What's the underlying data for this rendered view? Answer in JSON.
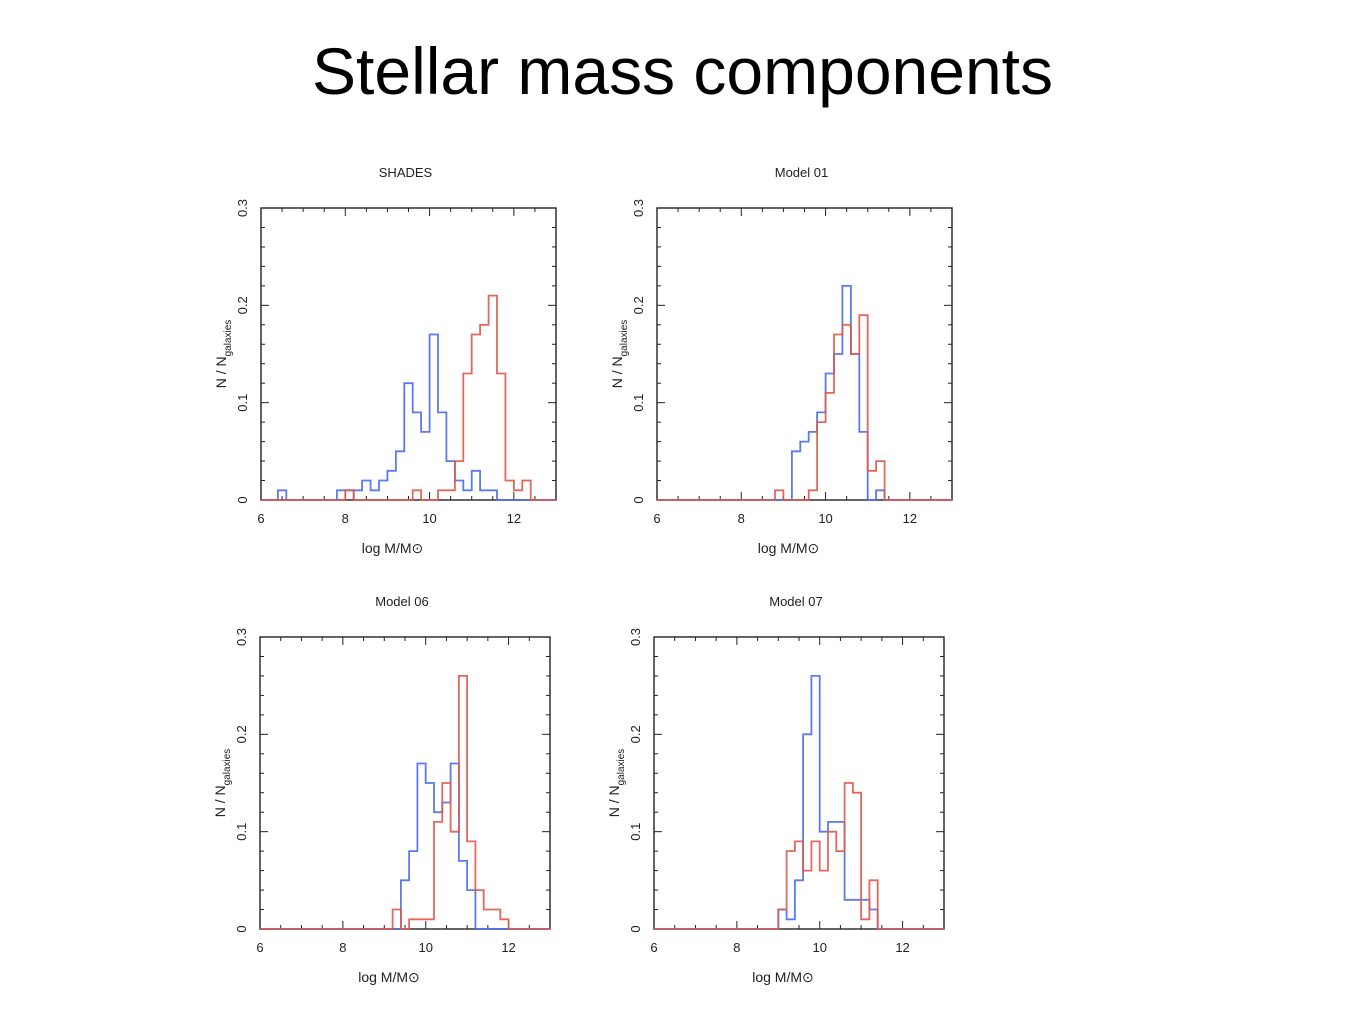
{
  "slide": {
    "title": "Stellar mass components"
  },
  "colors": {
    "blue": "#4a6cf0",
    "red": "#e0584a",
    "axis": "#222222"
  },
  "chart_data": [
    {
      "type": "histogram",
      "title": "SHADES",
      "xlabel": "log M/M⊙",
      "ylabel_main": "N / N",
      "ylabel_sub": "galaxies",
      "xlim": [
        6,
        13
      ],
      "ylim": [
        0,
        0.3
      ],
      "xticks": [
        6,
        8,
        10,
        12
      ],
      "xtick_labels": [
        "6",
        "8",
        "10",
        "12"
      ],
      "yticks": [
        0,
        0.1,
        0.2,
        0.3
      ],
      "ytick_labels": [
        "0",
        "0.1",
        "0.2",
        "0.3"
      ],
      "series": [
        {
          "color": "blue",
          "bins": [
            [
              6.0,
              0
            ],
            [
              6.4,
              0.01
            ],
            [
              6.6,
              0
            ],
            [
              7.8,
              0.01
            ],
            [
              8.0,
              0.01
            ],
            [
              8.2,
              0
            ],
            [
              8.2,
              0.01
            ],
            [
              8.4,
              0.02
            ],
            [
              8.6,
              0.01
            ],
            [
              8.8,
              0.02
            ],
            [
              9.0,
              0.03
            ],
            [
              9.2,
              0.05
            ],
            [
              9.4,
              0.12
            ],
            [
              9.6,
              0.09
            ],
            [
              9.8,
              0.07
            ],
            [
              10.0,
              0.17
            ],
            [
              10.2,
              0.09
            ],
            [
              10.4,
              0.04
            ],
            [
              10.6,
              0.02
            ],
            [
              10.8,
              0.01
            ],
            [
              11.0,
              0.03
            ],
            [
              11.2,
              0.01
            ],
            [
              11.4,
              0.01
            ],
            [
              11.6,
              0
            ],
            [
              13.0,
              0
            ]
          ]
        },
        {
          "color": "red",
          "bins": [
            [
              6.0,
              0
            ],
            [
              7.8,
              0
            ],
            [
              8.0,
              0.01
            ],
            [
              8.2,
              0
            ],
            [
              9.6,
              0.01
            ],
            [
              9.8,
              0
            ],
            [
              10.2,
              0.01
            ],
            [
              10.4,
              0.01
            ],
            [
              10.6,
              0.04
            ],
            [
              10.8,
              0.13
            ],
            [
              11.0,
              0.17
            ],
            [
              11.2,
              0.18
            ],
            [
              11.4,
              0.21
            ],
            [
              11.6,
              0.13
            ],
            [
              11.8,
              0.02
            ],
            [
              12.0,
              0.01
            ],
            [
              12.2,
              0.02
            ],
            [
              12.4,
              0
            ],
            [
              13.0,
              0
            ]
          ]
        }
      ]
    },
    {
      "type": "histogram",
      "title": "Model 01",
      "xlabel": "log M/M⊙",
      "ylabel_main": "N / N",
      "ylabel_sub": "galaxies",
      "xlim": [
        6,
        13
      ],
      "ylim": [
        0,
        0.3
      ],
      "xticks": [
        6,
        8,
        10,
        12
      ],
      "xtick_labels": [
        "6",
        "8",
        "10",
        "12"
      ],
      "yticks": [
        0,
        0.1,
        0.2,
        0.3
      ],
      "ytick_labels": [
        "0",
        "0.1",
        "0.2",
        "0.3"
      ],
      "series": [
        {
          "color": "blue",
          "bins": [
            [
              6.0,
              0
            ],
            [
              9.0,
              0
            ],
            [
              9.2,
              0.05
            ],
            [
              9.4,
              0.06
            ],
            [
              9.6,
              0.07
            ],
            [
              9.8,
              0.09
            ],
            [
              10.0,
              0.13
            ],
            [
              10.2,
              0.15
            ],
            [
              10.4,
              0.22
            ],
            [
              10.6,
              0.15
            ],
            [
              10.8,
              0.07
            ],
            [
              11.0,
              0
            ],
            [
              11.2,
              0.01
            ],
            [
              11.4,
              0
            ],
            [
              13.0,
              0
            ]
          ]
        },
        {
          "color": "red",
          "bins": [
            [
              6.0,
              0
            ],
            [
              8.8,
              0.01
            ],
            [
              9.0,
              0
            ],
            [
              9.4,
              0
            ],
            [
              9.6,
              0.01
            ],
            [
              9.8,
              0.08
            ],
            [
              10.0,
              0.11
            ],
            [
              10.2,
              0.17
            ],
            [
              10.4,
              0.18
            ],
            [
              10.6,
              0.15
            ],
            [
              10.8,
              0.19
            ],
            [
              11.0,
              0.03
            ],
            [
              11.2,
              0.04
            ],
            [
              11.4,
              0
            ],
            [
              13.0,
              0
            ]
          ]
        }
      ]
    },
    {
      "type": "histogram",
      "title": "Model 06",
      "xlabel": "log M/M⊙",
      "ylabel_main": "N / N",
      "ylabel_sub": "galaxies",
      "xlim": [
        6,
        13
      ],
      "ylim": [
        0,
        0.3
      ],
      "xticks": [
        6,
        8,
        10,
        12
      ],
      "xtick_labels": [
        "6",
        "8",
        "10",
        "12"
      ],
      "yticks": [
        0,
        0.1,
        0.2,
        0.3
      ],
      "ytick_labels": [
        "0",
        "0.1",
        "0.2",
        "0.3"
      ],
      "series": [
        {
          "color": "blue",
          "bins": [
            [
              6.0,
              0
            ],
            [
              9.2,
              0
            ],
            [
              9.4,
              0.05
            ],
            [
              9.6,
              0.08
            ],
            [
              9.8,
              0.17
            ],
            [
              10.0,
              0.15
            ],
            [
              10.2,
              0.12
            ],
            [
              10.4,
              0.13
            ],
            [
              10.6,
              0.17
            ],
            [
              10.8,
              0.07
            ],
            [
              11.0,
              0.04
            ],
            [
              11.2,
              0
            ],
            [
              13.0,
              0
            ]
          ]
        },
        {
          "color": "red",
          "bins": [
            [
              6.0,
              0
            ],
            [
              9.2,
              0.02
            ],
            [
              9.4,
              0
            ],
            [
              9.6,
              0.01
            ],
            [
              9.8,
              0.01
            ],
            [
              10.0,
              0.01
            ],
            [
              10.2,
              0.11
            ],
            [
              10.4,
              0.15
            ],
            [
              10.6,
              0.1
            ],
            [
              10.8,
              0.26
            ],
            [
              11.0,
              0.09
            ],
            [
              11.2,
              0.04
            ],
            [
              11.4,
              0.02
            ],
            [
              11.6,
              0.02
            ],
            [
              11.8,
              0.01
            ],
            [
              12.0,
              0
            ],
            [
              13.0,
              0
            ]
          ]
        }
      ]
    },
    {
      "type": "histogram",
      "title": "Model 07",
      "xlabel": "log M/M⊙",
      "ylabel_main": "N / N",
      "ylabel_sub": "galaxies",
      "xlim": [
        6,
        13
      ],
      "ylim": [
        0,
        0.3
      ],
      "xticks": [
        6,
        8,
        10,
        12
      ],
      "xtick_labels": [
        "6",
        "8",
        "10",
        "12"
      ],
      "yticks": [
        0,
        0.1,
        0.2,
        0.3
      ],
      "ytick_labels": [
        "0",
        "0.1",
        "0.2",
        "0.3"
      ],
      "series": [
        {
          "color": "blue",
          "bins": [
            [
              6.0,
              0
            ],
            [
              9.0,
              0.02
            ],
            [
              9.2,
              0.01
            ],
            [
              9.4,
              0.05
            ],
            [
              9.6,
              0.2
            ],
            [
              9.8,
              0.26
            ],
            [
              10.0,
              0.1
            ],
            [
              10.2,
              0.11
            ],
            [
              10.4,
              0.11
            ],
            [
              10.6,
              0.03
            ],
            [
              10.8,
              0.03
            ],
            [
              11.0,
              0.03
            ],
            [
              11.2,
              0.02
            ],
            [
              11.4,
              0
            ],
            [
              13.0,
              0
            ]
          ]
        },
        {
          "color": "red",
          "bins": [
            [
              6.0,
              0
            ],
            [
              9.0,
              0.02
            ],
            [
              9.2,
              0.08
            ],
            [
              9.4,
              0.09
            ],
            [
              9.6,
              0.06
            ],
            [
              9.8,
              0.09
            ],
            [
              10.0,
              0.06
            ],
            [
              10.2,
              0.1
            ],
            [
              10.4,
              0.08
            ],
            [
              10.6,
              0.15
            ],
            [
              10.8,
              0.14
            ],
            [
              11.0,
              0.01
            ],
            [
              11.2,
              0.05
            ],
            [
              11.4,
              0
            ],
            [
              13.0,
              0
            ]
          ]
        }
      ]
    }
  ]
}
